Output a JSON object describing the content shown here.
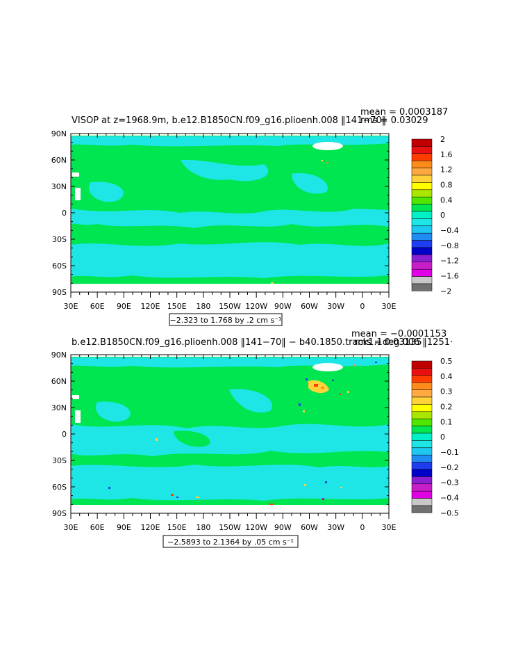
{
  "panels": [
    {
      "title": "VISOP at z=1968.9m, b.e12.B1850CN.f09_g16.plioenh.008 ‖141−70‖",
      "mean_label": "mean = 0.0003187",
      "rms_label": "rms = 0.03029",
      "range_label": "−2.323 to 1.768 by .2 cm s⁻¹",
      "colorbar": {
        "labels": [
          "2",
          "1.6",
          "1.2",
          "0.8",
          "0.4",
          "0",
          "−0.4",
          "−0.8",
          "−1.2",
          "−1.6",
          "−2"
        ],
        "colors": [
          "#c00000",
          "#e81010",
          "#ff3c00",
          "#ff8c1a",
          "#ffaa40",
          "#ffd23a",
          "#ffff00",
          "#aae600",
          "#50e600",
          "#00e650",
          "#00f0c8",
          "#1ee6e6",
          "#1ec8f0",
          "#1e8cf0",
          "#1e3cf0",
          "#0000c8",
          "#8c1ed2",
          "#c81ec8",
          "#e100e6",
          "#c8c8c8",
          "#707070"
        ]
      }
    },
    {
      "title": "b.e12.B1850CN.f09_g16.plioenh.008 ‖141−70‖ − b40.1850.track1.1deg.006 ‖1251·",
      "mean_label": "mean = −0.0001153",
      "rms_label": "rms = 0.03135",
      "range_label": "−2.5893 to 2.1364 by .05 cm s⁻¹",
      "colorbar": {
        "labels": [
          "0.5",
          "0.4",
          "0.3",
          "0.2",
          "0.1",
          "0",
          "−0.1",
          "−0.2",
          "−0.3",
          "−0.4",
          "−0.5"
        ],
        "colors": [
          "#c00000",
          "#e81010",
          "#ff3c00",
          "#ff8c1a",
          "#ffaa40",
          "#ffd23a",
          "#ffff00",
          "#aae600",
          "#50e600",
          "#00e650",
          "#00f0c8",
          "#1ee6e6",
          "#1ec8f0",
          "#1e8cf0",
          "#1e3cf0",
          "#0000c8",
          "#8c1ed2",
          "#c81ec8",
          "#e100e6",
          "#c8c8c8",
          "#707070"
        ]
      }
    }
  ],
  "axes": {
    "y_labels": [
      "90N",
      "60N",
      "30N",
      "0",
      "30S",
      "60S",
      "90S"
    ],
    "x_labels": [
      "30E",
      "60E",
      "90E",
      "120E",
      "150E",
      "180",
      "150W",
      "120W",
      "90W",
      "60W",
      "30W",
      "0",
      "30E"
    ]
  },
  "colors": {
    "zero_band": "#00e650",
    "negative_band": "#1ee6e6",
    "land_mask": "#ffffff"
  }
}
